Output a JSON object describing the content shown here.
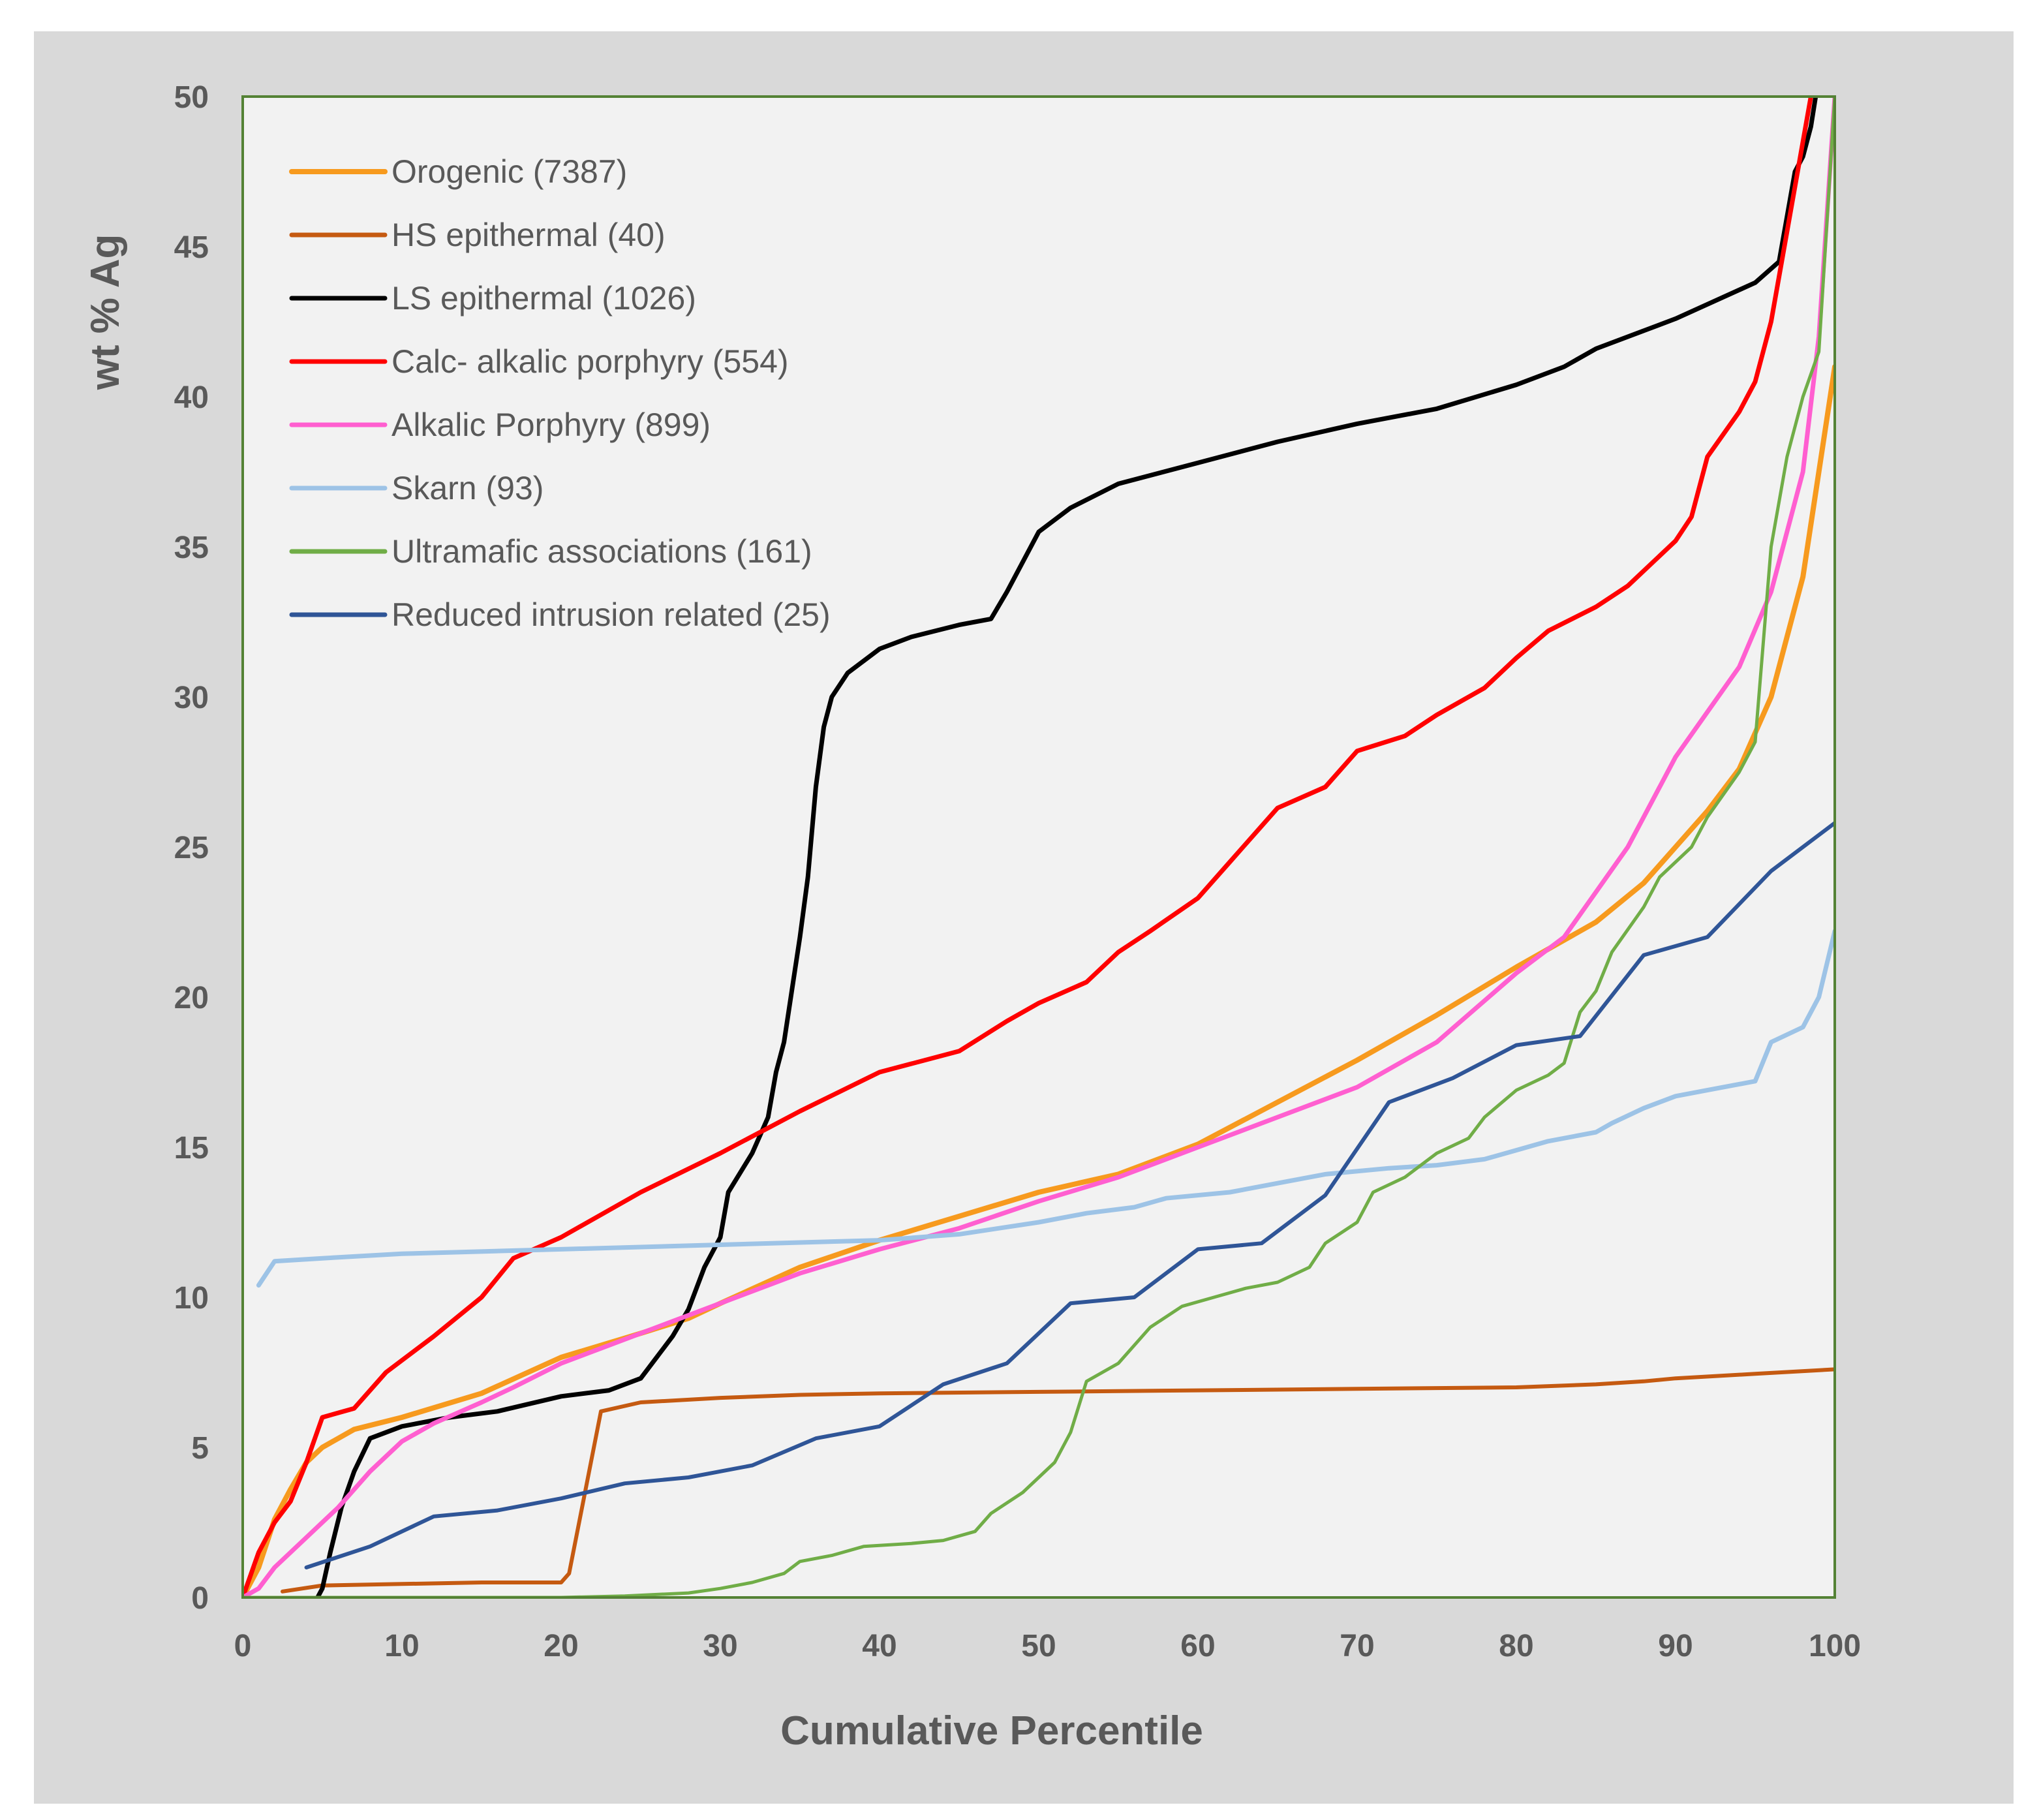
{
  "chart_data": {
    "type": "line",
    "title": "",
    "xlabel": "Cumulative Percentile",
    "ylabel": "wt % Ag",
    "xlim": [
      0,
      100
    ],
    "ylim": [
      0,
      50
    ],
    "xticks": [
      0,
      10,
      20,
      30,
      40,
      50,
      60,
      70,
      80,
      90,
      100
    ],
    "yticks": [
      0,
      5,
      10,
      15,
      20,
      25,
      30,
      35,
      40,
      45,
      50
    ],
    "grid": false,
    "legend_position": "top-left",
    "series": [
      {
        "name": "Orogenic (7387)",
        "color": "#f79a1e",
        "width": 8,
        "points": [
          [
            0,
            0
          ],
          [
            1,
            1
          ],
          [
            2,
            2.6
          ],
          [
            3,
            3.6
          ],
          [
            4,
            4.5
          ],
          [
            5,
            5.0
          ],
          [
            7,
            5.6
          ],
          [
            10,
            6.0
          ],
          [
            15,
            6.8
          ],
          [
            20,
            8.0
          ],
          [
            25,
            8.8
          ],
          [
            28,
            9.3
          ],
          [
            30,
            9.8
          ],
          [
            35,
            11.0
          ],
          [
            40,
            11.9
          ],
          [
            45,
            12.7
          ],
          [
            50,
            13.5
          ],
          [
            55,
            14.1
          ],
          [
            60,
            15.1
          ],
          [
            65,
            16.5
          ],
          [
            70,
            17.9
          ],
          [
            75,
            19.4
          ],
          [
            80,
            21.0
          ],
          [
            85,
            22.5
          ],
          [
            88,
            23.8
          ],
          [
            90,
            25.0
          ],
          [
            92,
            26.2
          ],
          [
            94,
            27.6
          ],
          [
            96,
            30.0
          ],
          [
            98,
            34.0
          ],
          [
            99,
            37.5
          ],
          [
            100,
            41.0
          ]
        ]
      },
      {
        "name": "HS epithermal (40)",
        "color": "#c55a11",
        "width": 6,
        "points": [
          [
            2.5,
            0.2
          ],
          [
            5,
            0.4
          ],
          [
            10,
            0.45
          ],
          [
            15,
            0.5
          ],
          [
            20,
            0.5
          ],
          [
            20.5,
            0.8
          ],
          [
            21.5,
            3.5
          ],
          [
            22.5,
            6.2
          ],
          [
            25,
            6.5
          ],
          [
            30,
            6.65
          ],
          [
            35,
            6.75
          ],
          [
            40,
            6.8
          ],
          [
            50,
            6.85
          ],
          [
            60,
            6.9
          ],
          [
            70,
            6.95
          ],
          [
            80,
            7.0
          ],
          [
            85,
            7.1
          ],
          [
            88,
            7.2
          ],
          [
            90,
            7.3
          ],
          [
            95,
            7.45
          ],
          [
            100,
            7.6
          ]
        ]
      },
      {
        "name": "LS epithermal (1026)",
        "color": "#000000",
        "width": 7,
        "points": [
          [
            4.7,
            0
          ],
          [
            5,
            0.3
          ],
          [
            5.5,
            1.5
          ],
          [
            6.2,
            3.0
          ],
          [
            7,
            4.2
          ],
          [
            8,
            5.3
          ],
          [
            10,
            5.7
          ],
          [
            13,
            6.0
          ],
          [
            16,
            6.2
          ],
          [
            20,
            6.7
          ],
          [
            23,
            6.9
          ],
          [
            25,
            7.3
          ],
          [
            26,
            8.0
          ],
          [
            27,
            8.7
          ],
          [
            28,
            9.6
          ],
          [
            29,
            11.0
          ],
          [
            30,
            12.0
          ],
          [
            30.5,
            13.5
          ],
          [
            32,
            14.8
          ],
          [
            33,
            16.0
          ],
          [
            33.5,
            17.5
          ],
          [
            34,
            18.5
          ],
          [
            35,
            22.0
          ],
          [
            35.5,
            24.0
          ],
          [
            36,
            27.0
          ],
          [
            36.5,
            29.0
          ],
          [
            37,
            30.0
          ],
          [
            38,
            30.8
          ],
          [
            39,
            31.2
          ],
          [
            40,
            31.6
          ],
          [
            42,
            32.0
          ],
          [
            45,
            32.4
          ],
          [
            47,
            32.6
          ],
          [
            48,
            33.5
          ],
          [
            49,
            34.5
          ],
          [
            50,
            35.5
          ],
          [
            52,
            36.3
          ],
          [
            55,
            37.1
          ],
          [
            60,
            37.8
          ],
          [
            65,
            38.5
          ],
          [
            70,
            39.1
          ],
          [
            75,
            39.6
          ],
          [
            80,
            40.4
          ],
          [
            83,
            41.0
          ],
          [
            85,
            41.6
          ],
          [
            90,
            42.6
          ],
          [
            95,
            43.8
          ],
          [
            96.5,
            44.5
          ],
          [
            97,
            46.0
          ],
          [
            97.5,
            47.5
          ],
          [
            98,
            48.0
          ],
          [
            98.5,
            49.0
          ],
          [
            98.8,
            50
          ]
        ]
      },
      {
        "name": "Calc- alkalic porphyry (554)",
        "color": "#ff0000",
        "width": 7,
        "points": [
          [
            0,
            0
          ],
          [
            1,
            1.5
          ],
          [
            2,
            2.5
          ],
          [
            3,
            3.2
          ],
          [
            4,
            4.5
          ],
          [
            5,
            6.0
          ],
          [
            7,
            6.3
          ],
          [
            9,
            7.5
          ],
          [
            12,
            8.7
          ],
          [
            15,
            10.0
          ],
          [
            17,
            11.3
          ],
          [
            20,
            12.0
          ],
          [
            25,
            13.5
          ],
          [
            30,
            14.8
          ],
          [
            35,
            16.2
          ],
          [
            40,
            17.5
          ],
          [
            45,
            18.2
          ],
          [
            48,
            19.2
          ],
          [
            50,
            19.8
          ],
          [
            53,
            20.5
          ],
          [
            55,
            21.5
          ],
          [
            57,
            22.2
          ],
          [
            60,
            23.3
          ],
          [
            62,
            24.5
          ],
          [
            65,
            26.3
          ],
          [
            68,
            27.0
          ],
          [
            70,
            28.2
          ],
          [
            73,
            28.7
          ],
          [
            75,
            29.4
          ],
          [
            78,
            30.3
          ],
          [
            80,
            31.3
          ],
          [
            82,
            32.2
          ],
          [
            85,
            33.0
          ],
          [
            87,
            33.7
          ],
          [
            90,
            35.2
          ],
          [
            91,
            36.0
          ],
          [
            92,
            38.0
          ],
          [
            94,
            39.5
          ],
          [
            95,
            40.5
          ],
          [
            96,
            42.5
          ],
          [
            97,
            45.5
          ],
          [
            98,
            48.5
          ],
          [
            98.5,
            50
          ]
        ]
      },
      {
        "name": "Alkalic Porphyry (899)",
        "color": "#ff5fd0",
        "width": 7,
        "points": [
          [
            0,
            0
          ],
          [
            1,
            0.3
          ],
          [
            2,
            1.0
          ],
          [
            4,
            2.0
          ],
          [
            6,
            3.0
          ],
          [
            8,
            4.2
          ],
          [
            10,
            5.2
          ],
          [
            12,
            5.8
          ],
          [
            15,
            6.5
          ],
          [
            17,
            7.0
          ],
          [
            20,
            7.8
          ],
          [
            25,
            8.8
          ],
          [
            30,
            9.8
          ],
          [
            35,
            10.8
          ],
          [
            40,
            11.6
          ],
          [
            45,
            12.3
          ],
          [
            50,
            13.2
          ],
          [
            55,
            14.0
          ],
          [
            60,
            15.0
          ],
          [
            65,
            16.0
          ],
          [
            70,
            17.0
          ],
          [
            75,
            18.5
          ],
          [
            80,
            20.8
          ],
          [
            83,
            22.0
          ],
          [
            85,
            23.5
          ],
          [
            87,
            25.0
          ],
          [
            88,
            26.0
          ],
          [
            90,
            28.0
          ],
          [
            92,
            29.5
          ],
          [
            94,
            31.0
          ],
          [
            96,
            33.5
          ],
          [
            97,
            35.5
          ],
          [
            98,
            37.5
          ],
          [
            99,
            42.0
          ],
          [
            100,
            50
          ]
        ]
      },
      {
        "name": "Skarn (93)",
        "color": "#9dc3e6",
        "width": 7,
        "points": [
          [
            1,
            10.4
          ],
          [
            2,
            11.2
          ],
          [
            5,
            11.3
          ],
          [
            10,
            11.45
          ],
          [
            20,
            11.6
          ],
          [
            30,
            11.75
          ],
          [
            40,
            11.9
          ],
          [
            45,
            12.1
          ],
          [
            50,
            12.5
          ],
          [
            53,
            12.8
          ],
          [
            56,
            13.0
          ],
          [
            58,
            13.3
          ],
          [
            62,
            13.5
          ],
          [
            65,
            13.8
          ],
          [
            68,
            14.1
          ],
          [
            72,
            14.3
          ],
          [
            75,
            14.4
          ],
          [
            78,
            14.6
          ],
          [
            80,
            14.9
          ],
          [
            82,
            15.2
          ],
          [
            85,
            15.5
          ],
          [
            86,
            15.8
          ],
          [
            88,
            16.3
          ],
          [
            90,
            16.7
          ],
          [
            92,
            16.9
          ],
          [
            95,
            17.2
          ],
          [
            96,
            18.5
          ],
          [
            98,
            19.0
          ],
          [
            99,
            20.0
          ],
          [
            100,
            22.2
          ]
        ]
      },
      {
        "name": "Ultramafic associations (161)",
        "color": "#70ad47",
        "width": 5,
        "points": [
          [
            0,
            0
          ],
          [
            10,
            0
          ],
          [
            20,
            0
          ],
          [
            24,
            0.05
          ],
          [
            28,
            0.15
          ],
          [
            30,
            0.3
          ],
          [
            32,
            0.5
          ],
          [
            34,
            0.8
          ],
          [
            35,
            1.2
          ],
          [
            37,
            1.4
          ],
          [
            39,
            1.7
          ],
          [
            42,
            1.8
          ],
          [
            44,
            1.9
          ],
          [
            46,
            2.2
          ],
          [
            47,
            2.8
          ],
          [
            49,
            3.5
          ],
          [
            50,
            4.0
          ],
          [
            51,
            4.5
          ],
          [
            52,
            5.5
          ],
          [
            53,
            7.2
          ],
          [
            55,
            7.8
          ],
          [
            57,
            9.0
          ],
          [
            59,
            9.7
          ],
          [
            61,
            10.0
          ],
          [
            63,
            10.3
          ],
          [
            65,
            10.5
          ],
          [
            67,
            11.0
          ],
          [
            68,
            11.8
          ],
          [
            70,
            12.5
          ],
          [
            71,
            13.5
          ],
          [
            73,
            14.0
          ],
          [
            75,
            14.8
          ],
          [
            77,
            15.3
          ],
          [
            78,
            16.0
          ],
          [
            80,
            16.9
          ],
          [
            82,
            17.4
          ],
          [
            83,
            17.8
          ],
          [
            84,
            19.5
          ],
          [
            85,
            20.2
          ],
          [
            86,
            21.5
          ],
          [
            88,
            23.0
          ],
          [
            89,
            24.0
          ],
          [
            90,
            24.5
          ],
          [
            91,
            25.0
          ],
          [
            92,
            26.0
          ],
          [
            94,
            27.5
          ],
          [
            95,
            28.5
          ],
          [
            96,
            35.0
          ],
          [
            97,
            38.0
          ],
          [
            98,
            40.0
          ],
          [
            99,
            41.5
          ],
          [
            100,
            50
          ]
        ]
      },
      {
        "name": "Reduced intrusion related (25)",
        "color": "#2f5597",
        "width": 6,
        "points": [
          [
            4,
            1.0
          ],
          [
            8,
            1.7
          ],
          [
            12,
            2.7
          ],
          [
            16,
            2.9
          ],
          [
            20,
            3.3
          ],
          [
            24,
            3.8
          ],
          [
            28,
            4.0
          ],
          [
            32,
            4.4
          ],
          [
            36,
            5.3
          ],
          [
            40,
            5.7
          ],
          [
            44,
            7.1
          ],
          [
            48,
            7.8
          ],
          [
            52,
            9.8
          ],
          [
            56,
            10.0
          ],
          [
            60,
            11.6
          ],
          [
            64,
            11.8
          ],
          [
            68,
            13.4
          ],
          [
            72,
            16.5
          ],
          [
            76,
            17.3
          ],
          [
            80,
            18.4
          ],
          [
            84,
            18.7
          ],
          [
            88,
            21.4
          ],
          [
            92,
            22.0
          ],
          [
            96,
            24.2
          ],
          [
            100,
            25.8
          ]
        ]
      }
    ]
  }
}
